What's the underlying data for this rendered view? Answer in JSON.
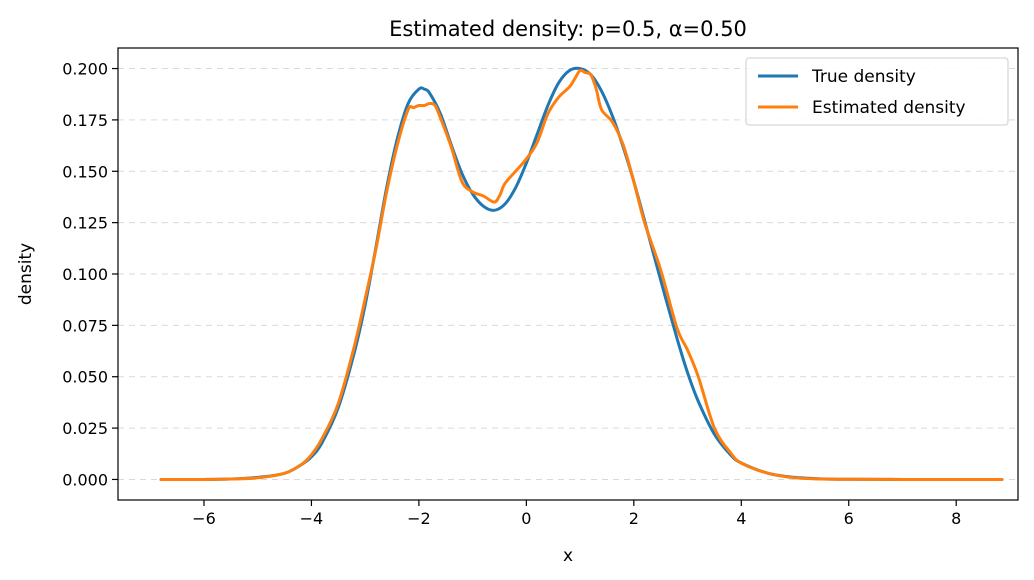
{
  "chart_data": {
    "type": "line",
    "title": "Estimated density: p=0.5, α=0.50",
    "xlabel": "x",
    "ylabel": "density",
    "xlim": [
      -7.6,
      9.15
    ],
    "ylim": [
      -0.01,
      0.21
    ],
    "xticks": [
      -6,
      -4,
      -2,
      0,
      2,
      4,
      6,
      8
    ],
    "xtick_labels": [
      "−6",
      "−4",
      "−2",
      "0",
      "2",
      "4",
      "6",
      "8"
    ],
    "yticks": [
      0,
      0.025,
      0.05,
      0.075,
      0.1,
      0.125,
      0.15,
      0.175,
      0.2
    ],
    "ytick_labels": [
      "0.000",
      "0.025",
      "0.050",
      "0.075",
      "0.100",
      "0.125",
      "0.150",
      "0.175",
      "0.200"
    ],
    "grid": "y-dashed",
    "legend_position": "top-right",
    "series": [
      {
        "name": "True density",
        "color": "#1f77b4",
        "x": [
          -6.8,
          -6.0,
          -5.5,
          -5.0,
          -4.5,
          -4.2,
          -4.0,
          -3.8,
          -3.5,
          -3.2,
          -3.0,
          -2.8,
          -2.6,
          -2.4,
          -2.2,
          -2.0,
          -1.9,
          -1.8,
          -1.6,
          -1.4,
          -1.2,
          -1.0,
          -0.8,
          -0.6,
          -0.4,
          -0.2,
          0.0,
          0.2,
          0.4,
          0.6,
          0.8,
          1.0,
          1.2,
          1.4,
          1.6,
          1.8,
          2.0,
          2.2,
          2.5,
          2.8,
          3.0,
          3.2,
          3.5,
          3.8,
          4.0,
          4.5,
          5.0,
          5.5,
          6.0,
          7.0,
          8.0,
          8.85
        ],
        "y": [
          0.0,
          0.0,
          0.0002,
          0.001,
          0.003,
          0.007,
          0.011,
          0.018,
          0.035,
          0.062,
          0.085,
          0.113,
          0.142,
          0.166,
          0.183,
          0.19,
          0.19,
          0.188,
          0.178,
          0.163,
          0.149,
          0.139,
          0.133,
          0.131,
          0.134,
          0.142,
          0.154,
          0.168,
          0.182,
          0.193,
          0.199,
          0.2,
          0.197,
          0.189,
          0.177,
          0.162,
          0.145,
          0.126,
          0.097,
          0.069,
          0.052,
          0.038,
          0.022,
          0.012,
          0.008,
          0.003,
          0.001,
          0.0003,
          0.0001,
          0.0,
          0.0,
          0.0
        ]
      },
      {
        "name": "Estimated density",
        "color": "#ff7f0e",
        "x": [
          -6.8,
          -6.0,
          -5.5,
          -5.0,
          -4.5,
          -4.2,
          -4.0,
          -3.8,
          -3.5,
          -3.2,
          -3.0,
          -2.8,
          -2.6,
          -2.4,
          -2.2,
          -2.1,
          -2.0,
          -1.9,
          -1.8,
          -1.7,
          -1.6,
          -1.4,
          -1.2,
          -1.0,
          -0.8,
          -0.6,
          -0.5,
          -0.4,
          -0.2,
          0.0,
          0.2,
          0.4,
          0.6,
          0.8,
          0.9,
          1.0,
          1.1,
          1.2,
          1.3,
          1.4,
          1.6,
          1.8,
          2.0,
          2.2,
          2.5,
          2.8,
          3.0,
          3.2,
          3.5,
          3.8,
          4.0,
          4.5,
          5.0,
          5.5,
          6.0,
          7.0,
          8.0,
          8.85
        ],
        "y": [
          0.0,
          0.0,
          0.0002,
          0.0008,
          0.003,
          0.007,
          0.012,
          0.02,
          0.037,
          0.065,
          0.088,
          0.112,
          0.14,
          0.163,
          0.18,
          0.181,
          0.182,
          0.182,
          0.183,
          0.182,
          0.176,
          0.162,
          0.145,
          0.14,
          0.138,
          0.135,
          0.138,
          0.144,
          0.15,
          0.156,
          0.164,
          0.178,
          0.186,
          0.191,
          0.195,
          0.199,
          0.198,
          0.197,
          0.19,
          0.18,
          0.174,
          0.163,
          0.145,
          0.125,
          0.102,
          0.074,
          0.063,
          0.05,
          0.025,
          0.013,
          0.008,
          0.003,
          0.0008,
          0.0002,
          0.0001,
          0.0,
          0.0,
          0.0
        ]
      }
    ]
  }
}
